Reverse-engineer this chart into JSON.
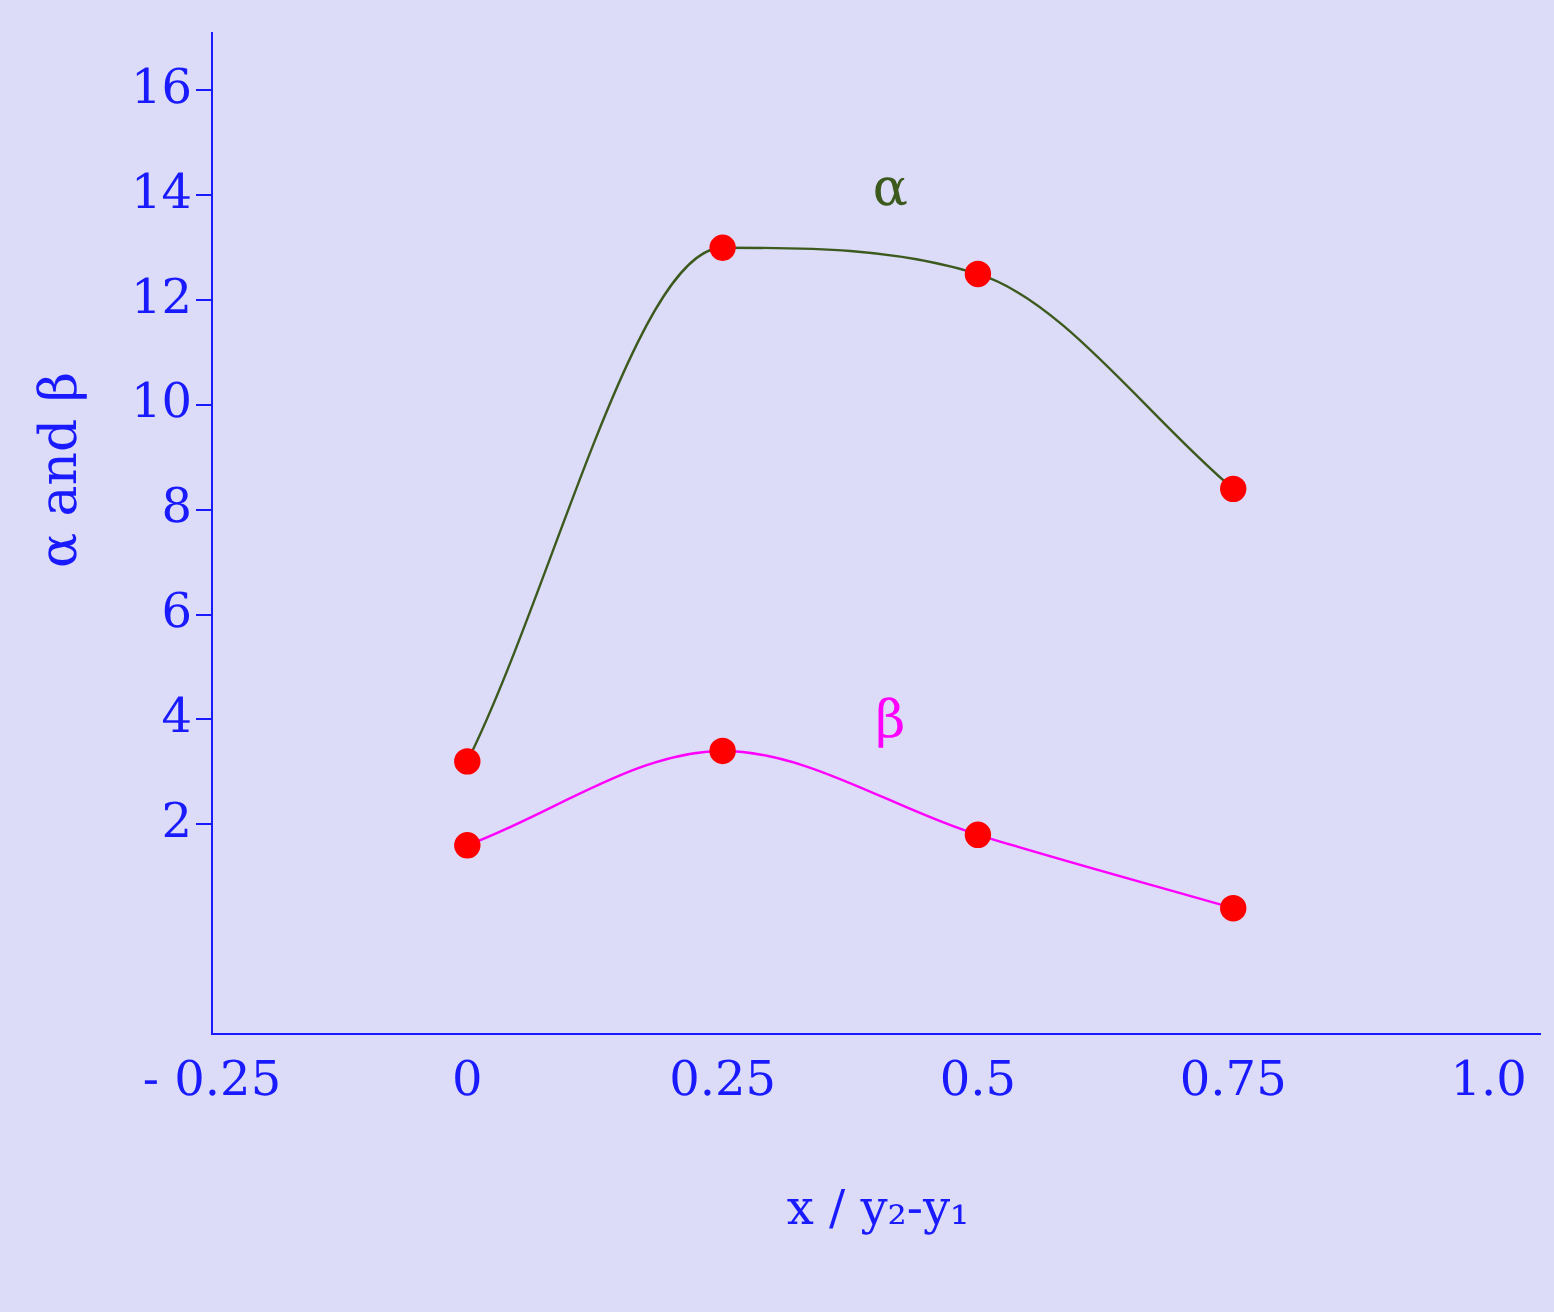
{
  "chart_data": {
    "type": "line",
    "xlabel": "x / y₂-y₁",
    "ylabel": "α and β",
    "x": [
      0,
      0.25,
      0.5,
      0.75
    ],
    "series": [
      {
        "name": "α",
        "color": "#3d5a1e",
        "colors": [
          "#ff0000",
          "#ff0000",
          "#ff0000",
          "#ff0000"
        ],
        "values": [
          3.2,
          13.0,
          12.5,
          8.4
        ]
      },
      {
        "name": "β",
        "color": "#ff00ff",
        "colors": [
          "#ff0000",
          "#ff0000",
          "#ff0000",
          "#ff0000"
        ],
        "values": [
          1.6,
          3.4,
          1.8,
          0.4
        ]
      }
    ],
    "xlim": [
      -0.25,
      1.05
    ],
    "xticks": [
      {
        "value": -0.25,
        "label": "- 0.25"
      },
      0,
      0.25,
      0.5,
      0.75,
      {
        "value": 1,
        "label": "1.0"
      }
    ],
    "ylim": [
      -2,
      17.1
    ],
    "yticks": [
      2,
      4,
      6,
      8,
      10,
      12,
      14,
      16
    ],
    "grid": false,
    "legend": false,
    "marker": "circle",
    "line_style": "solid"
  }
}
